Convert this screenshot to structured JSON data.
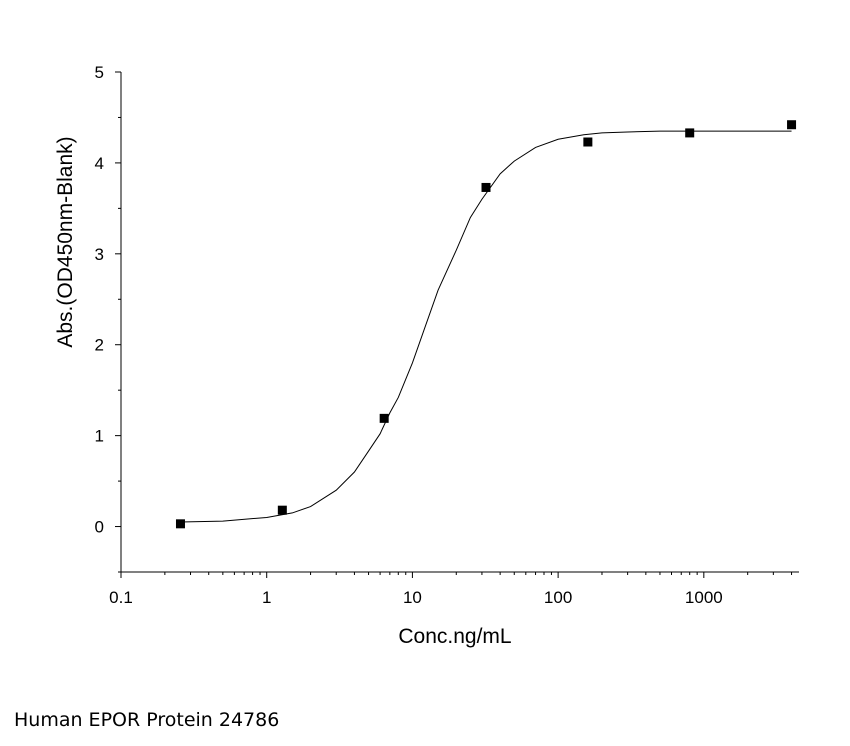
{
  "chart_data": {
    "type": "scatter",
    "title": "",
    "xlabel": "Conc.ng/mL",
    "ylabel": "Abs.(OD450nm-Blank)",
    "x_scale": "log",
    "xlim": [
      0.1,
      4500
    ],
    "ylim": [
      -0.5,
      5
    ],
    "x_ticks": [
      0.1,
      1,
      10,
      100,
      1000
    ],
    "x_tick_labels": [
      "0.1",
      "1",
      "10",
      "100",
      "1000"
    ],
    "y_ticks": [
      0,
      1,
      2,
      3,
      4,
      5
    ],
    "y_tick_labels": [
      "0",
      "1",
      "2",
      "3",
      "4",
      "5"
    ],
    "grid": false,
    "series": [
      {
        "marker": "square",
        "x": [
          0.256,
          1.28,
          6.4,
          32,
          160,
          800,
          4000
        ],
        "y": [
          0.03,
          0.18,
          1.19,
          3.73,
          4.23,
          4.33,
          4.42
        ]
      }
    ],
    "fit_curve": {
      "style": "line",
      "x": [
        0.256,
        0.5,
        1,
        1.5,
        2,
        3,
        4,
        5,
        6,
        7,
        8,
        10,
        12,
        15,
        20,
        25,
        30,
        40,
        50,
        70,
        100,
        150,
        200,
        300,
        500,
        1000,
        2000,
        4000
      ],
      "y": [
        0.05,
        0.06,
        0.1,
        0.15,
        0.22,
        0.4,
        0.6,
        0.83,
        1.02,
        1.25,
        1.42,
        1.8,
        2.16,
        2.6,
        3.04,
        3.4,
        3.6,
        3.88,
        4.02,
        4.17,
        4.26,
        4.31,
        4.33,
        4.34,
        4.35,
        4.35,
        4.35,
        4.35
      ]
    },
    "colors": {
      "marker": "#000000",
      "line": "#000000",
      "axes": "#000000"
    }
  },
  "caption": "Human EPOR Protein 24786"
}
